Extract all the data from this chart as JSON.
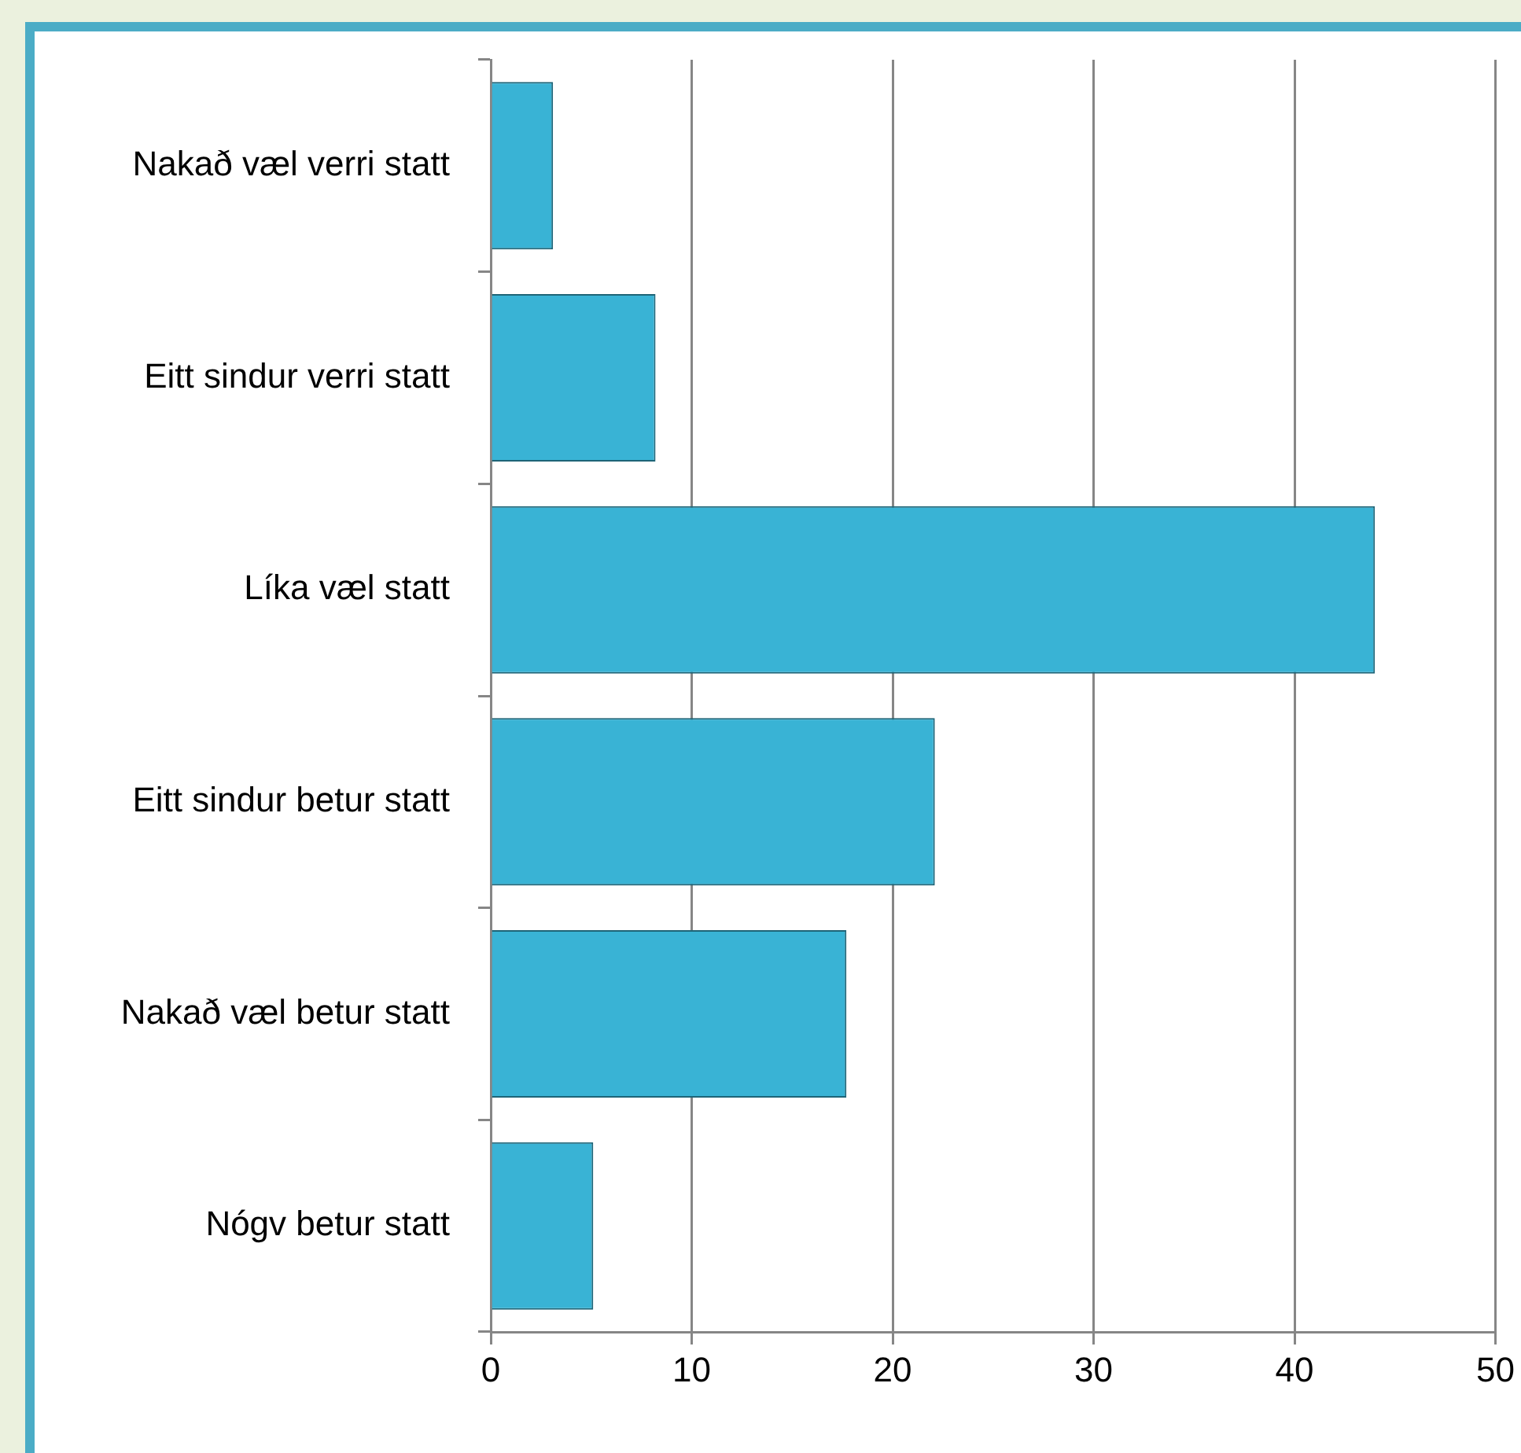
{
  "chart_data": {
    "type": "bar",
    "orientation": "horizontal",
    "categories": [
      "Nakað væl verri statt",
      "Eitt sindur verri statt",
      "Líka væl statt",
      "Eitt sindur betur statt",
      "Nakað væl betur statt",
      "Nógv betur statt"
    ],
    "values": [
      3.1,
      8.2,
      44.0,
      22.1,
      17.7,
      5.1
    ],
    "color": "#39b3d5",
    "xlim": [
      0,
      50
    ],
    "xticks": [
      0,
      10,
      20,
      30,
      40,
      50
    ],
    "grid": "x"
  }
}
